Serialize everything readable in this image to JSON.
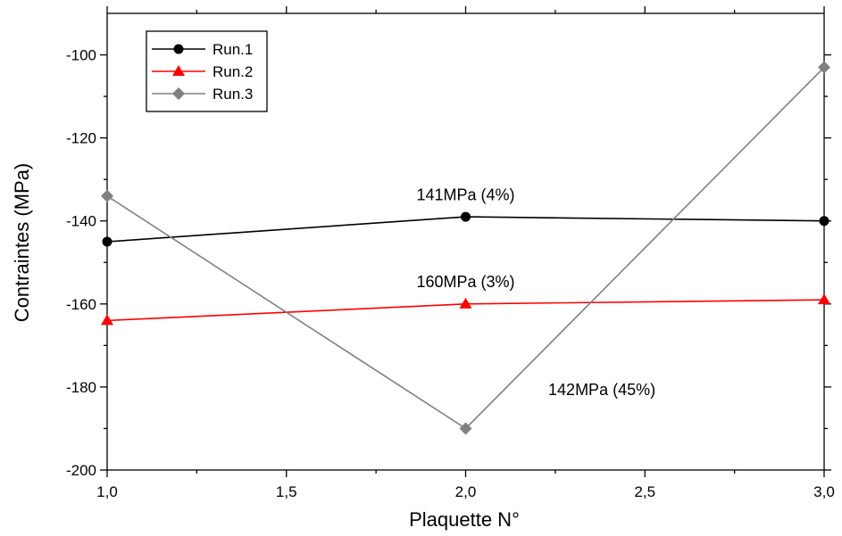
{
  "chart_data": {
    "type": "line",
    "xlabel": "Plaquette N°",
    "ylabel": "Contraintes (MPa)",
    "x": [
      1.0,
      2.0,
      3.0
    ],
    "xlim": [
      1.0,
      3.0
    ],
    "ylim": [
      -200,
      -90
    ],
    "x_ticks": [
      1.0,
      1.5,
      2.0,
      2.5,
      3.0
    ],
    "x_tick_labels": [
      "1,0",
      "1,5",
      "2,0",
      "2,5",
      "3,0"
    ],
    "y_ticks": [
      -200,
      -180,
      -160,
      -140,
      -120,
      -100
    ],
    "y_tick_labels": [
      "-200",
      "-180",
      "-160",
      "-140",
      "-120",
      "-100"
    ],
    "grid": false,
    "legend_position": "top-left",
    "series": [
      {
        "name": "Run.1",
        "color": "#000000",
        "marker": "circle",
        "values": [
          -145,
          -139,
          -140
        ]
      },
      {
        "name": "Run.2",
        "color": "#ff0000",
        "marker": "triangle",
        "values": [
          -164,
          -160,
          -159
        ]
      },
      {
        "name": "Run.3",
        "color": "#808080",
        "marker": "diamond",
        "values": [
          -134,
          -190,
          -103
        ]
      }
    ],
    "annotations": [
      {
        "text": "141MPa (4%)",
        "x": 2.0,
        "y": -135
      },
      {
        "text": "160MPa (3%)",
        "x": 2.0,
        "y": -156
      },
      {
        "text": "142MPa (45%)",
        "x": 2.38,
        "y": -182
      }
    ]
  }
}
